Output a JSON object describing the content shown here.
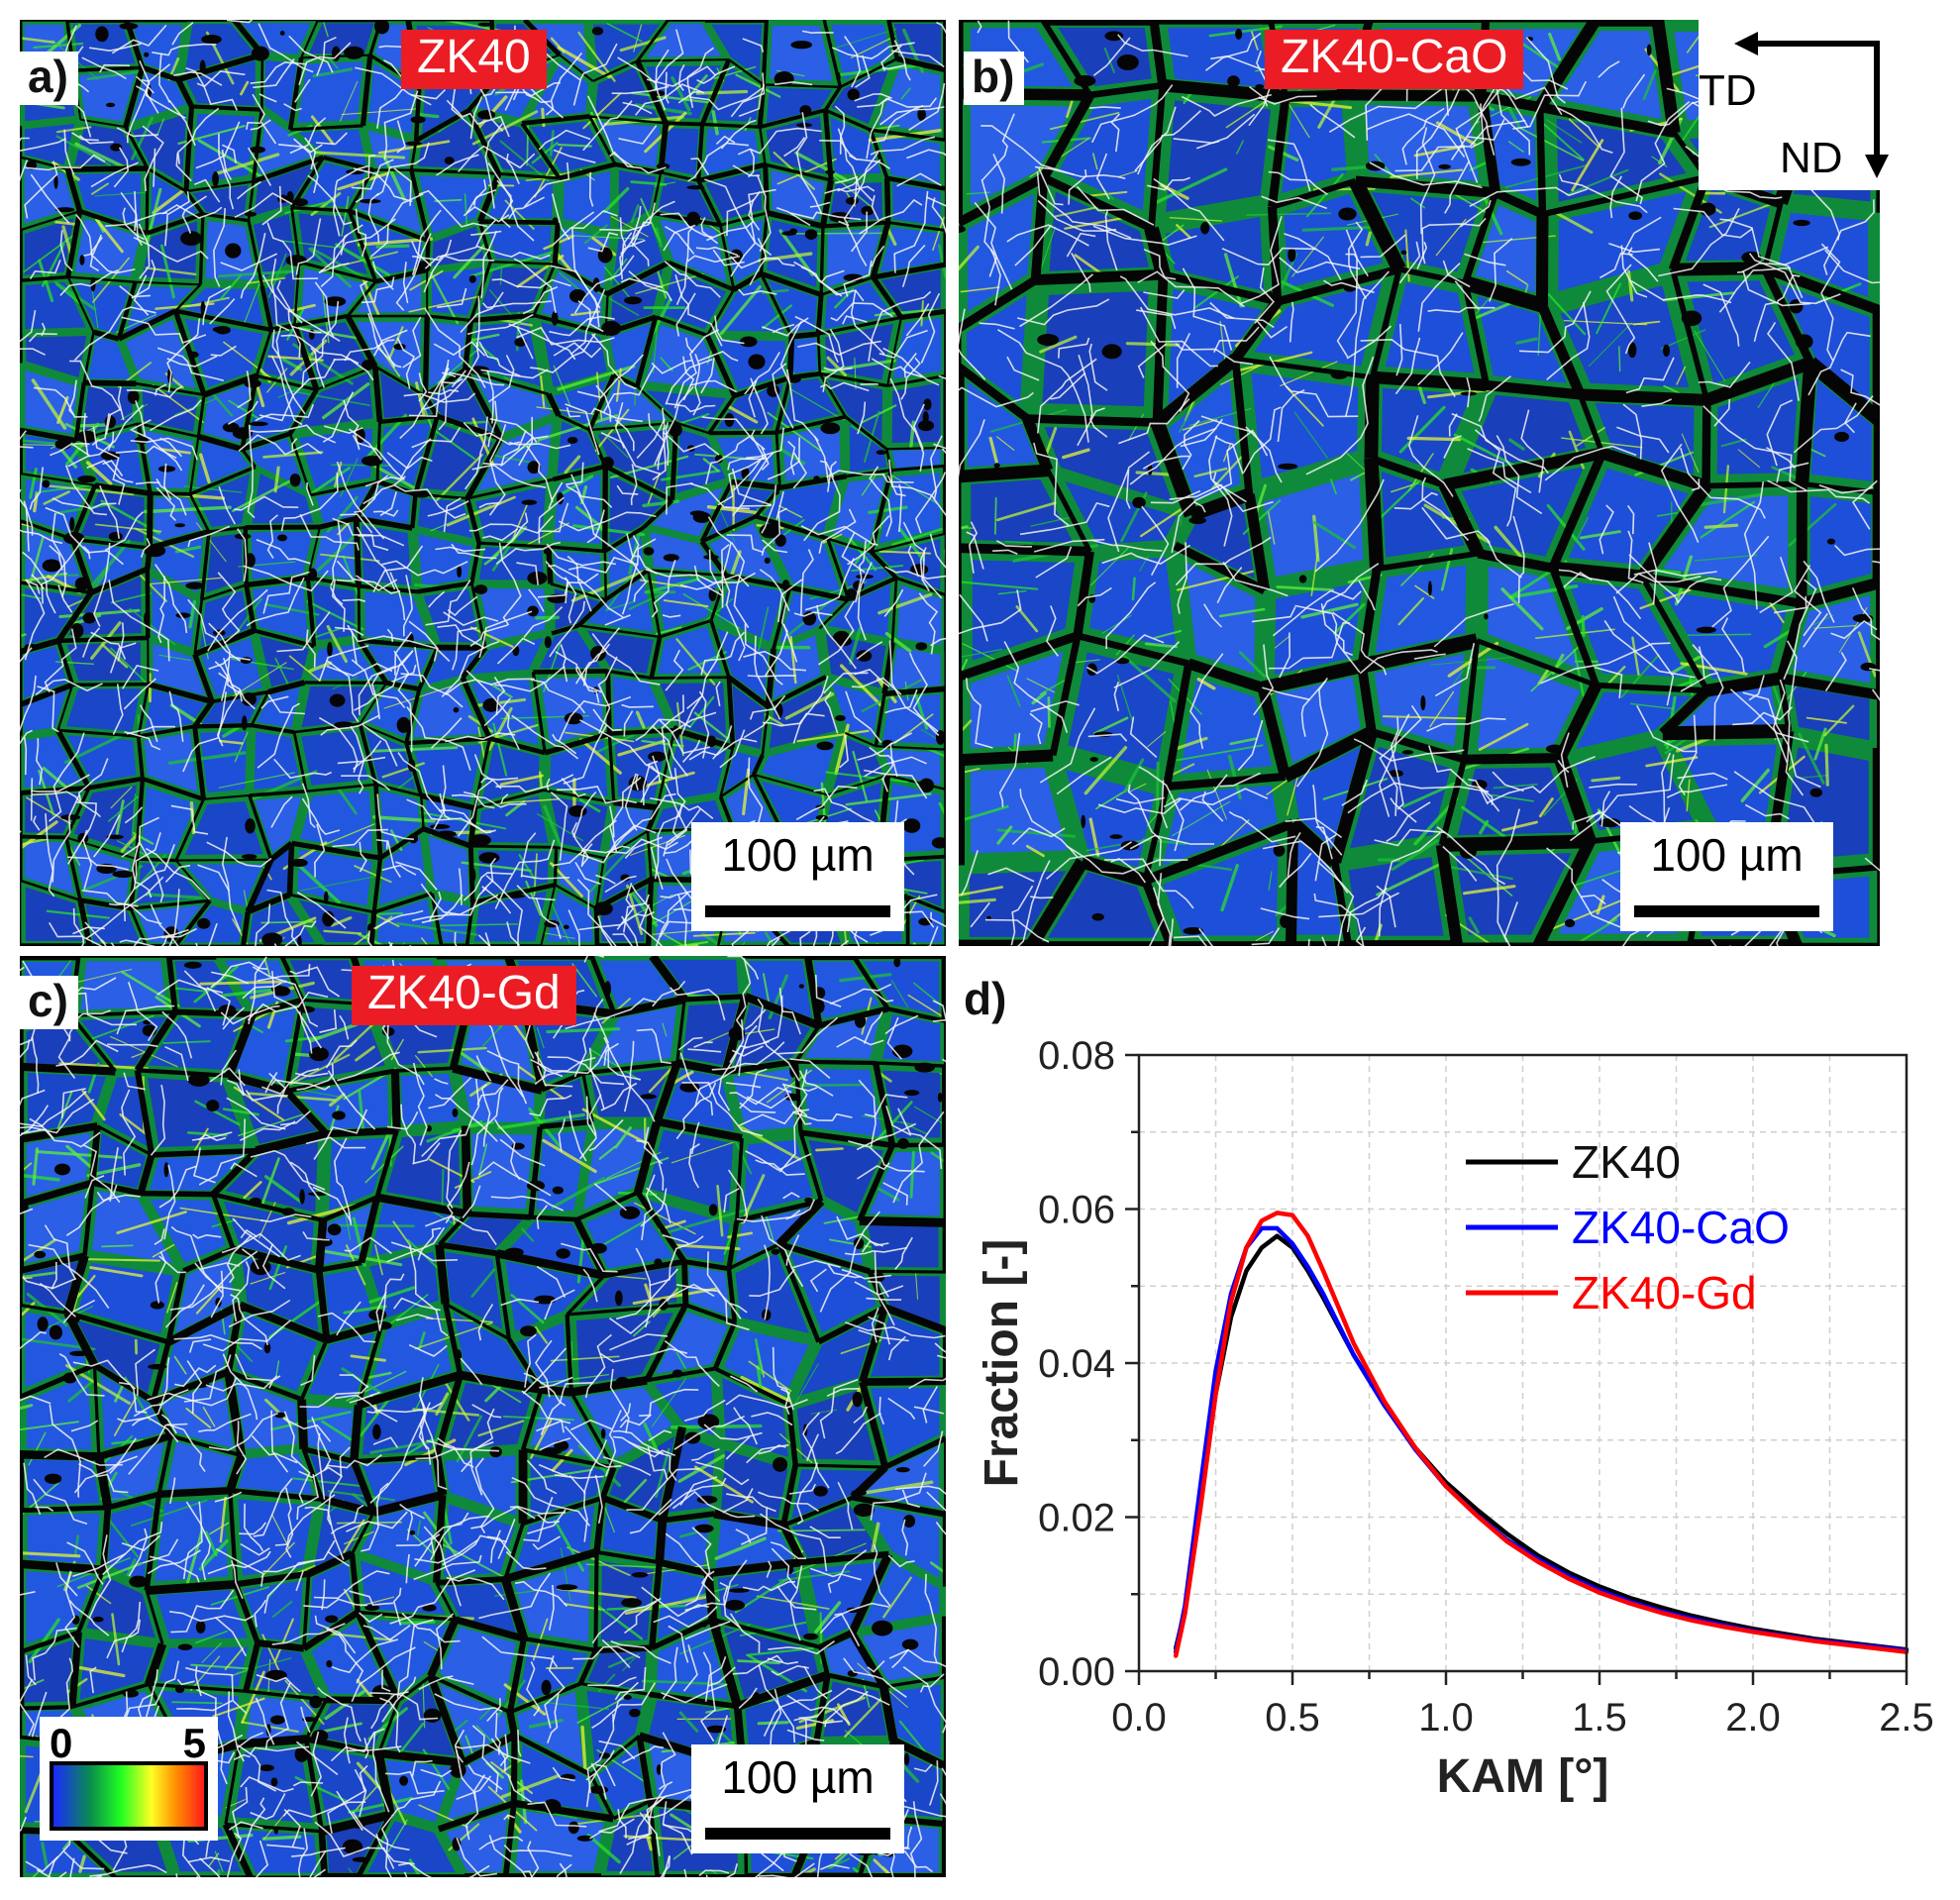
{
  "panels": {
    "a": {
      "label": "a)",
      "title": "ZK40",
      "scale": "100 µm"
    },
    "b": {
      "label": "b)",
      "title": "ZK40-CaO",
      "scale": "100 µm"
    },
    "c": {
      "label": "c)",
      "title": "ZK40-Gd",
      "scale": "100 µm"
    },
    "d": {
      "label": "d)"
    }
  },
  "directions": {
    "td": "TD",
    "nd": "ND"
  },
  "colorbar": {
    "min": "0",
    "max": "5"
  },
  "colors": {
    "badge": "#ec1c24",
    "zk40": "#000000",
    "zk40_cao": "#0000ff",
    "zk40_gd": "#ff0000"
  },
  "chart_data": {
    "type": "line",
    "title": "",
    "xlabel": "KAM [°]",
    "ylabel": "Fraction [-]",
    "xlim": [
      0.0,
      2.5
    ],
    "ylim": [
      0.0,
      0.08
    ],
    "xticks": [
      "0.0",
      "0.5",
      "1.0",
      "1.5",
      "2.0",
      "2.5"
    ],
    "yticks": [
      "0.00",
      "0.02",
      "0.04",
      "0.06",
      "0.08"
    ],
    "grid": true,
    "legend_position": "top-right",
    "series": [
      {
        "name": "ZK40",
        "color": "#000000",
        "x": [
          0.12,
          0.15,
          0.2,
          0.25,
          0.3,
          0.35,
          0.4,
          0.45,
          0.5,
          0.55,
          0.6,
          0.7,
          0.8,
          0.9,
          1.0,
          1.1,
          1.2,
          1.3,
          1.4,
          1.5,
          1.6,
          1.7,
          1.8,
          1.9,
          2.0,
          2.2,
          2.5
        ],
        "y": [
          0.003,
          0.008,
          0.022,
          0.036,
          0.046,
          0.052,
          0.055,
          0.0565,
          0.055,
          0.052,
          0.0485,
          0.041,
          0.0345,
          0.029,
          0.0245,
          0.021,
          0.0178,
          0.015,
          0.0128,
          0.011,
          0.0095,
          0.0083,
          0.0072,
          0.0063,
          0.0055,
          0.0042,
          0.0028
        ]
      },
      {
        "name": "ZK40-CaO",
        "color": "#0000ff",
        "x": [
          0.12,
          0.15,
          0.2,
          0.25,
          0.3,
          0.35,
          0.4,
          0.45,
          0.5,
          0.55,
          0.6,
          0.7,
          0.8,
          0.9,
          1.0,
          1.1,
          1.2,
          1.3,
          1.4,
          1.5,
          1.6,
          1.7,
          1.8,
          1.9,
          2.0,
          2.2,
          2.5
        ],
        "y": [
          0.0025,
          0.0085,
          0.024,
          0.039,
          0.049,
          0.055,
          0.0575,
          0.0575,
          0.0555,
          0.0525,
          0.049,
          0.041,
          0.0345,
          0.0288,
          0.024,
          0.0203,
          0.017,
          0.0145,
          0.0123,
          0.0105,
          0.009,
          0.0078,
          0.0068,
          0.006,
          0.0052,
          0.004,
          0.0027
        ]
      },
      {
        "name": "ZK40-Gd",
        "color": "#ff0000",
        "x": [
          0.12,
          0.15,
          0.2,
          0.25,
          0.3,
          0.35,
          0.4,
          0.45,
          0.5,
          0.55,
          0.6,
          0.7,
          0.8,
          0.9,
          1.0,
          1.1,
          1.2,
          1.3,
          1.4,
          1.5,
          1.6,
          1.7,
          1.8,
          1.9,
          2.0,
          2.2,
          2.5
        ],
        "y": [
          0.002,
          0.0075,
          0.021,
          0.036,
          0.048,
          0.055,
          0.0585,
          0.0595,
          0.0592,
          0.0565,
          0.052,
          0.0425,
          0.035,
          0.029,
          0.024,
          0.0202,
          0.0168,
          0.0142,
          0.012,
          0.0102,
          0.0088,
          0.0076,
          0.0066,
          0.0058,
          0.0051,
          0.0039,
          0.0025
        ]
      }
    ]
  }
}
